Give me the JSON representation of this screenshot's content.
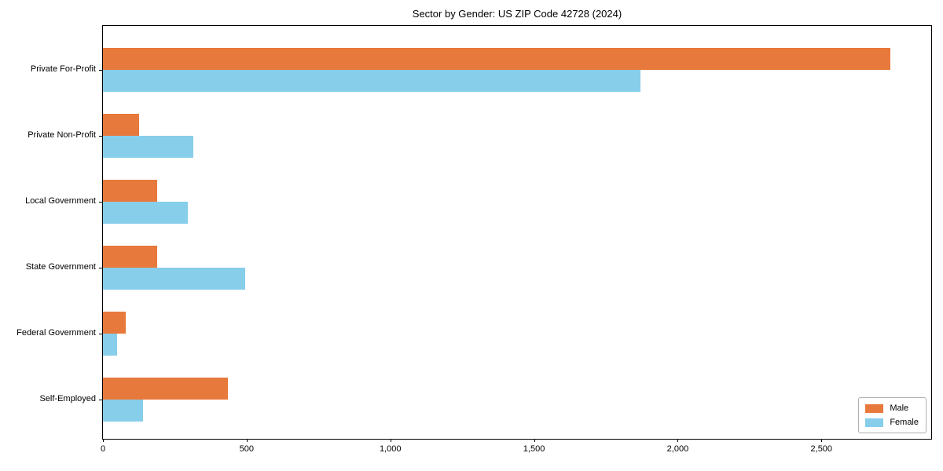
{
  "title": "Sector by Gender: US ZIP Code 42728 (2024)",
  "chart_data": {
    "type": "bar",
    "orientation": "horizontal",
    "title": "Sector by Gender: US ZIP Code 42728 (2024)",
    "xlabel": "",
    "ylabel": "",
    "categories": [
      "Private For-Profit",
      "Private Non-Profit",
      "Local Government",
      "State Government",
      "Federal Government",
      "Self-Employed"
    ],
    "series": [
      {
        "name": "Male",
        "color": "#e8793c",
        "values": [
          2740,
          125,
          190,
          190,
          80,
          435
        ]
      },
      {
        "name": "Female",
        "color": "#87ceeb",
        "values": [
          1870,
          315,
          295,
          495,
          50,
          140
        ]
      }
    ],
    "xlim": [
      0,
      2882
    ],
    "x_ticks": [
      0,
      500,
      1000,
      1500,
      2000,
      2500
    ],
    "x_tick_labels": [
      "0",
      "500",
      "1,000",
      "1,500",
      "2,000",
      "2,500"
    ],
    "grid": false,
    "legend": {
      "position": "lower right",
      "entries": [
        "Male",
        "Female"
      ]
    },
    "colors": {
      "axis": "#000000",
      "background": "#ffffff",
      "legend_border": "#b0b0b0"
    }
  }
}
